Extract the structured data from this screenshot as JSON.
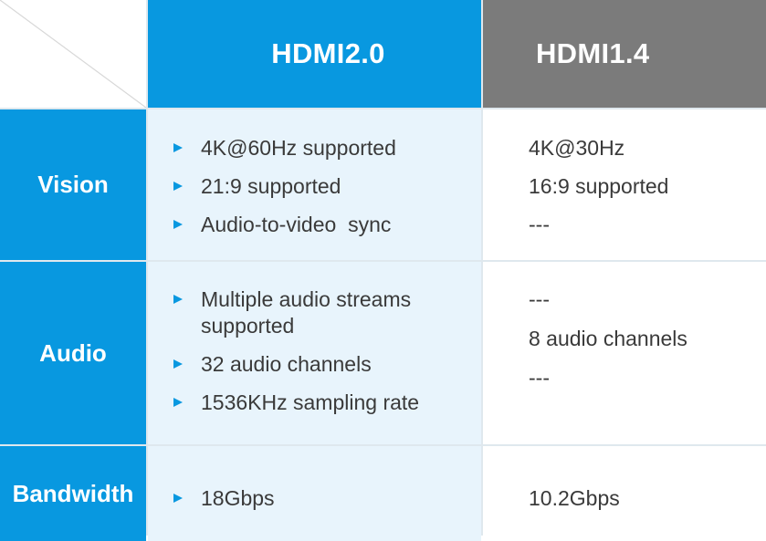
{
  "header": {
    "col1": "HDMI2.0",
    "col2": "HDMI1.4"
  },
  "colors": {
    "accent_blue": "#0898e0",
    "header_gray": "#7b7b7b",
    "light_blue_cell": "#e8f4fc",
    "text": "#3a3a3a"
  },
  "icons": {
    "bullet": "triangle-arrow-right-icon"
  },
  "rows": [
    {
      "label": "Vision",
      "hdmi20": [
        "4K@60Hz supported",
        "21:9 supported",
        "Audio-to-video  sync"
      ],
      "hdmi14": [
        "4K@30Hz",
        "16:9 supported",
        "---"
      ]
    },
    {
      "label": "Audio",
      "hdmi20": [
        "Multiple audio streams supported",
        "32 audio channels",
        "1536KHz sampling rate"
      ],
      "hdmi14": [
        "---",
        "8 audio channels",
        "---"
      ]
    },
    {
      "label": "Bandwidth",
      "hdmi20": [
        "18Gbps"
      ],
      "hdmi14": [
        "10.2Gbps"
      ]
    }
  ]
}
